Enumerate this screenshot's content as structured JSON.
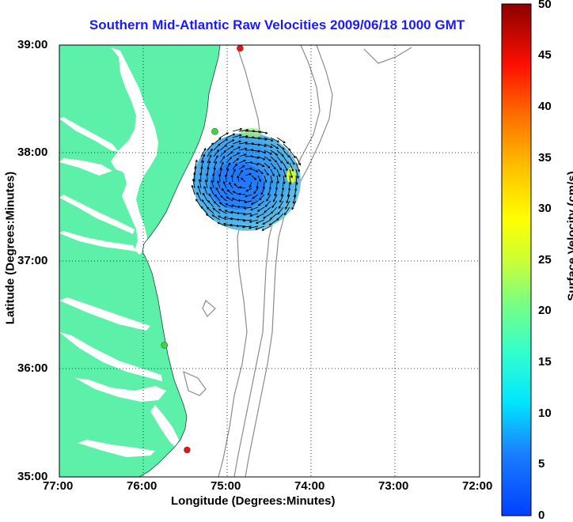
{
  "title": "Southern Mid-Atlantic Raw Velocities 2009/06/18 1000 GMT",
  "map": {
    "xlabel": "Longitude (Degrees:Minutes)",
    "ylabel": "Latitude (Degrees:Minutes)",
    "x_ticks": [
      "77:00",
      "76:00",
      "75:00",
      "74:00",
      "73:00",
      "72:00"
    ],
    "y_ticks": [
      "39:00",
      "38:00",
      "37:00",
      "36:00",
      "35:00"
    ],
    "lon_range": [
      -77,
      -72
    ],
    "lat_range": [
      35,
      39
    ],
    "grid": "dotted"
  },
  "colorbar": {
    "label": "Surface Velocity (cm/s)",
    "ticks": [
      "50",
      "45",
      "40",
      "35",
      "30",
      "25",
      "20",
      "15",
      "10",
      "5",
      "0"
    ],
    "range": [
      0,
      50
    ]
  },
  "colors": {
    "land": "#5cf0a8",
    "title": "#1a1aff",
    "bathymetry": "#8c8c8c",
    "station_green": "#33dd33",
    "station_red": "#ee1111"
  },
  "stations": [
    {
      "lon": -74.85,
      "lat": 38.97,
      "status": "red"
    },
    {
      "lon": -75.15,
      "lat": 38.2,
      "status": "green"
    },
    {
      "lon": -75.75,
      "lat": 36.22,
      "status": "green"
    },
    {
      "lon": -75.48,
      "lat": 35.25,
      "status": "red"
    }
  ]
}
